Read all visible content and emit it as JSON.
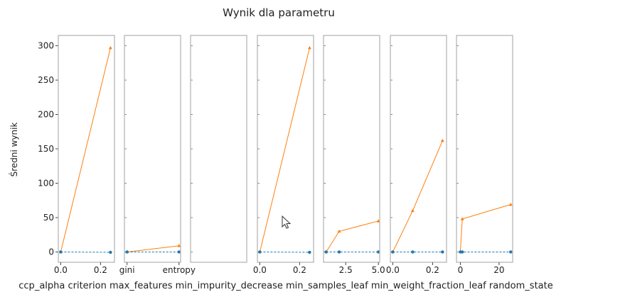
{
  "chart_data": {
    "type": "line",
    "title": "Wynik dla parametru",
    "ylabel": "Średni wynik",
    "ylim": [
      -15,
      315
    ],
    "yticks": [
      0,
      50,
      100,
      150,
      200,
      250,
      300
    ],
    "colors": {
      "orange": "#ff7f0e",
      "blue": "#1f77b4",
      "frame": "#b0b0b0",
      "text": "#222222"
    },
    "panels": [
      {
        "name": "ccp_alpha",
        "xlim": [
          -0.012,
          0.27
        ],
        "xticks": [
          0.0,
          0.2
        ],
        "xticklabels": [
          "0.0",
          "0.2"
        ],
        "series": [
          {
            "color": "orange",
            "marker": "triangle",
            "x": [
              0.0,
              0.25
            ],
            "y": [
              0,
              297
            ]
          },
          {
            "color": "blue",
            "marker": "circle",
            "dashed": true,
            "x": [
              0.0,
              0.25
            ],
            "y": [
              0,
              -0.5
            ]
          }
        ]
      },
      {
        "name": "criterion",
        "xlim": [
          -0.05,
          1.03
        ],
        "categories": [
          "gini",
          "entropy"
        ],
        "xticks": [
          0,
          1
        ],
        "xticklabels": [
          "gini",
          "entropy"
        ],
        "series": [
          {
            "color": "orange",
            "marker": "triangle",
            "x": [
              0,
              1
            ],
            "y": [
              0,
              9
            ]
          },
          {
            "color": "blue",
            "marker": "circle",
            "dashed": true,
            "x": [
              0,
              1
            ],
            "y": [
              0,
              0
            ]
          }
        ]
      },
      {
        "name": "max_features",
        "xlim": [
          0,
          1
        ],
        "xticks": [],
        "xticklabels": [],
        "series": []
      },
      {
        "name": "min_impurity_decrease",
        "xlim": [
          -0.012,
          0.27
        ],
        "xticks": [
          0.0,
          0.2
        ],
        "xticklabels": [
          "0.0",
          "0.2"
        ],
        "series": [
          {
            "color": "orange",
            "marker": "triangle",
            "x": [
              0.0,
              0.25
            ],
            "y": [
              0,
              297
            ]
          },
          {
            "color": "blue",
            "marker": "circle",
            "dashed": true,
            "x": [
              0.0,
              0.25
            ],
            "y": [
              0,
              -0.5
            ]
          }
        ]
      },
      {
        "name": "min_samples_leaf",
        "xlim": [
          0.8,
          5.1
        ],
        "xticks": [
          2.5,
          5.0
        ],
        "xticklabels": [
          "2.5",
          "5.0"
        ],
        "series": [
          {
            "color": "orange",
            "marker": "triangle",
            "x": [
              1,
              2,
              5
            ],
            "y": [
              0,
              30,
              45
            ]
          },
          {
            "color": "blue",
            "marker": "circle",
            "dashed": true,
            "x": [
              1,
              2,
              5
            ],
            "y": [
              0,
              0,
              0
            ]
          }
        ]
      },
      {
        "name": "min_weight_fraction_leaf",
        "xlim": [
          -0.012,
          0.27
        ],
        "xticks": [
          0.0,
          0.2
        ],
        "xticklabels": [
          "0.0",
          "0.2"
        ],
        "series": [
          {
            "color": "orange",
            "marker": "triangle",
            "x": [
              0.0,
              0.1,
              0.25
            ],
            "y": [
              0,
              60,
              162
            ]
          },
          {
            "color": "blue",
            "marker": "circle",
            "dashed": true,
            "x": [
              0.0,
              0.1,
              0.25
            ],
            "y": [
              0,
              0,
              0
            ]
          }
        ]
      },
      {
        "name": "random_state",
        "xlim": [
          -2,
          27
        ],
        "xticks": [
          0,
          20
        ],
        "xticklabels": [
          "0",
          "20"
        ],
        "series": [
          {
            "color": "orange",
            "marker": "triangle",
            "x": [
              0,
              1,
              26
            ],
            "y": [
              0,
              48,
              69
            ]
          },
          {
            "color": "blue",
            "marker": "circle",
            "dashed": true,
            "x": [
              0,
              1,
              26
            ],
            "y": [
              0,
              0,
              0
            ]
          }
        ]
      }
    ],
    "xlabel": "ccp_alpha criterion max_features min_impurity_decrease min_samples_leaf min_weight_fraction_leaf random_state"
  }
}
